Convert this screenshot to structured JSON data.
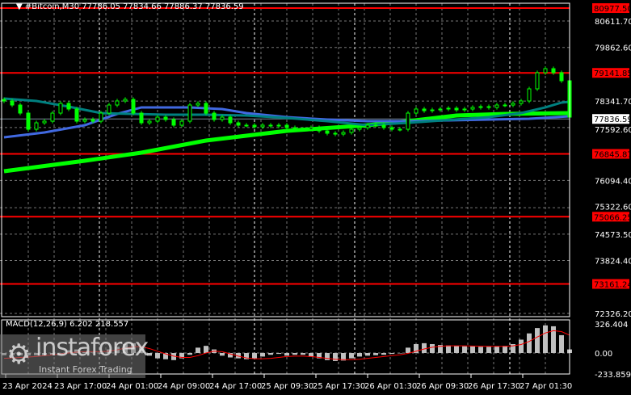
{
  "header": {
    "title": "#Bitcoin,M30  77786.05 77834.66 77886.37 77836.59",
    "menu_icon": "triangle-down-icon"
  },
  "watermark": {
    "name": "instaforex",
    "tagline": "Instant Forex Trading"
  },
  "colors": {
    "bull": "#00ff00",
    "ma_fast": "#00ff00",
    "ma_mid": "#4169e1",
    "ma_slow": "#008080",
    "level": "#ff0000",
    "macd_hist": "#c0c0c0",
    "macd_signal": "#ff0000"
  },
  "chart_data": [
    {
      "type": "candlestick",
      "symbol": "#Bitcoin",
      "timeframe": "M30",
      "price_ticks": [
        "80611.70",
        "79862.60",
        "78341.70",
        "77592.60",
        "76094.40",
        "75322.60",
        "74573.50",
        "73824.40",
        "72326.20"
      ],
      "ylim": [
        72326.2,
        80611.7
      ],
      "time_ticks": [
        "23 Apr 2024",
        "23 Apr 17:00",
        "24 Apr 01:00",
        "24 Apr 09:00",
        "24 Apr 17:00",
        "25 Apr 09:30",
        "25 Apr 17:30",
        "26 Apr 01:30",
        "26 Apr 09:30",
        "26 Apr 17:30",
        "27 Apr 01:30"
      ],
      "current_price": "77836.59",
      "levels": [
        "80977.50",
        "79141.85",
        "76845.87",
        "75066.25",
        "73161.24"
      ],
      "closes": [
        78346,
        78231,
        78002,
        77544,
        77727,
        77773,
        78002,
        78277,
        78117,
        77773,
        77819,
        77773,
        78002,
        78231,
        78346,
        78391,
        78002,
        77727,
        77773,
        77888,
        77819,
        77659,
        77773,
        78231,
        78277,
        78002,
        77819,
        77888,
        77727,
        77659,
        77659,
        77613,
        77659,
        77636,
        77659,
        77590,
        77544,
        77544,
        77590,
        77498,
        77430,
        77407,
        77453,
        77544,
        77590,
        77659,
        77659,
        77590,
        77544,
        77544,
        78002,
        78117,
        78070,
        78093,
        78117,
        78140,
        78093,
        78117,
        78163,
        78185,
        78162,
        78231,
        78231,
        78277,
        78346,
        78689,
        79147,
        79261,
        79147,
        78918,
        77888
      ],
      "moving_averages": [
        {
          "color": "#00ff00",
          "points": [
            [
              0,
              76354
            ],
            [
              10,
              76652
            ],
            [
              17,
              76881
            ],
            [
              25,
              77224
            ],
            [
              35,
              77499
            ],
            [
              45,
              77659
            ],
            [
              50,
              77773
            ],
            [
              56,
              77934
            ],
            [
              62,
              77979
            ],
            [
              70,
              78002
            ]
          ]
        },
        {
          "color": "#4169e1",
          "points": [
            [
              0,
              77315
            ],
            [
              5,
              77453
            ],
            [
              10,
              77659
            ],
            [
              14,
              77979
            ],
            [
              17,
              78163
            ],
            [
              23,
              78163
            ],
            [
              27,
              78117
            ],
            [
              30,
              78002
            ],
            [
              35,
              77888
            ],
            [
              40,
              77819
            ],
            [
              45,
              77773
            ],
            [
              50,
              77773
            ],
            [
              60,
              77819
            ],
            [
              65,
              77842
            ],
            [
              70,
              77910
            ]
          ]
        },
        {
          "color": "#008080",
          "points": [
            [
              0,
              78414
            ],
            [
              4,
              78346
            ],
            [
              8,
              78185
            ],
            [
              12,
              78002
            ],
            [
              20,
              77956
            ],
            [
              25,
              77956
            ],
            [
              30,
              77933
            ],
            [
              35,
              77865
            ],
            [
              40,
              77773
            ],
            [
              45,
              77659
            ],
            [
              50,
              77727
            ],
            [
              60,
              77888
            ],
            [
              64,
              78002
            ],
            [
              67,
              78163
            ],
            [
              69,
              78300
            ],
            [
              70,
              78323
            ]
          ]
        }
      ]
    },
    {
      "type": "bar",
      "label": "MACD(12,26,9) 6.202 218.557",
      "y_ticks": [
        "326.404",
        "0.00",
        "-233.859"
      ],
      "ylim": [
        -233.859,
        326.404
      ],
      "histogram": [
        -25,
        -25,
        -25,
        -25,
        -25,
        -25,
        -25,
        -20,
        30,
        40,
        10,
        5,
        -10,
        40,
        70,
        100,
        110,
        60,
        -30,
        -60,
        -70,
        -80,
        -60,
        -20,
        60,
        80,
        40,
        -30,
        -50,
        -60,
        -70,
        -60,
        -40,
        -20,
        -10,
        -30,
        -20,
        -20,
        -40,
        -60,
        -80,
        -90,
        -85,
        -60,
        -40,
        -30,
        -25,
        -20,
        -10,
        0,
        60,
        100,
        110,
        100,
        90,
        85,
        80,
        75,
        75,
        70,
        70,
        75,
        80,
        100,
        150,
        220,
        280,
        310,
        300,
        200,
        40
      ],
      "signal": [
        -60,
        -55,
        -50,
        -45,
        -40,
        -30,
        -20,
        -10,
        0,
        10,
        15,
        15,
        15,
        20,
        35,
        55,
        70,
        70,
        50,
        20,
        -10,
        -35,
        -50,
        -50,
        -30,
        0,
        20,
        15,
        -10,
        -35,
        -55,
        -65,
        -65,
        -60,
        -50,
        -40,
        -35,
        -35,
        -40,
        -50,
        -60,
        -70,
        -75,
        -75,
        -70,
        -60,
        -50,
        -40,
        -30,
        -20,
        -5,
        20,
        45,
        65,
        75,
        80,
        80,
        80,
        78,
        76,
        75,
        75,
        75,
        80,
        95,
        130,
        180,
        225,
        250,
        240,
        200
      ]
    }
  ]
}
